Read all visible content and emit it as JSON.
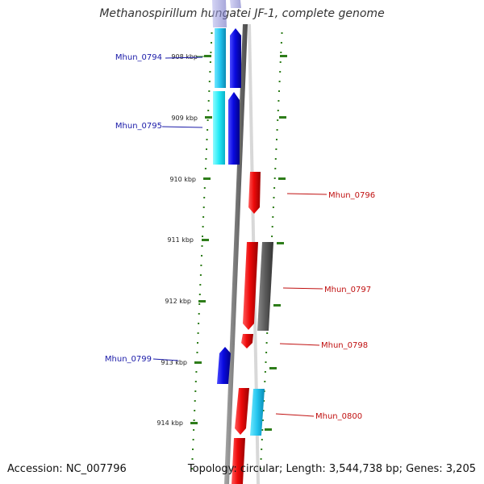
{
  "title": "Methanospirillum hungatei JF-1, complete genome",
  "footer": {
    "accession": "Accession: NC_007796",
    "topology": "Topology: circular; Length: 3,544,738 bp; Genes: 3,205"
  },
  "ruler": {
    "ticks": [
      "908 kbp",
      "909 kbp",
      "910 kbp",
      "911 kbp",
      "912 kbp",
      "913 kbp",
      "914 kbp"
    ],
    "color": "#2e7d1a"
  },
  "genes": [
    {
      "label": "Mhun_0794",
      "strand": "reverse",
      "color": "#1f3ccf"
    },
    {
      "label": "Mhun_0795",
      "strand": "reverse",
      "color": "#1f3ccf"
    },
    {
      "label": "Mhun_0796",
      "strand": "forward",
      "color": "#d81b1b"
    },
    {
      "label": "Mhun_0797",
      "strand": "forward",
      "color": "#d81b1b"
    },
    {
      "label": "Mhun_0798",
      "strand": "forward",
      "color": "#d81b1b"
    },
    {
      "label": "Mhun_0799",
      "strand": "reverse",
      "color": "#1f3ccf"
    },
    {
      "label": "Mhun_0800",
      "strand": "forward",
      "color": "#d81b1b"
    }
  ],
  "colors": {
    "forward_cds": "#e41a1a",
    "reverse_cds": "#1212d6",
    "reverse_rna": "#22ccee",
    "forward_other": "#666666",
    "backbone": "#8a8a8a"
  }
}
